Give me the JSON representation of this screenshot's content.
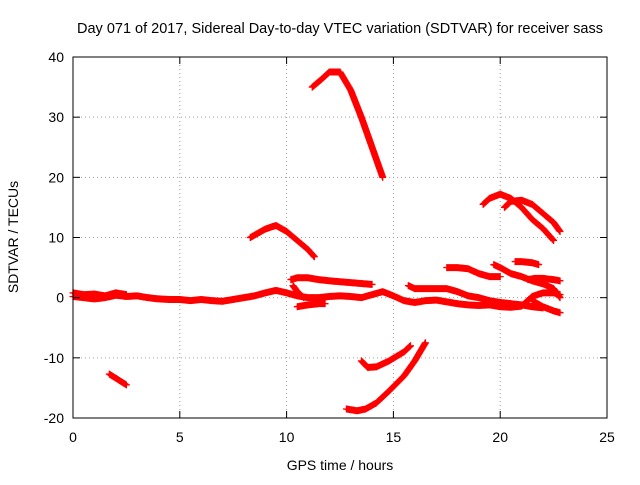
{
  "chart_data": {
    "type": "scatter",
    "title": "Day 071 of 2017, Sidereal Day-to-day VTEC variation (SDTVAR) for receiver sass",
    "xlabel": "GPS time / hours",
    "ylabel": "SDTVAR / TECUs",
    "xlim": [
      0,
      25
    ],
    "ylim": [
      -20,
      40
    ],
    "x_ticks": [
      0,
      5,
      10,
      15,
      20,
      25
    ],
    "y_ticks": [
      -20,
      -10,
      0,
      10,
      20,
      30,
      40
    ],
    "x_tick_labels": [
      "0",
      "5",
      "10",
      "15",
      "20",
      "25"
    ],
    "y_tick_labels": [
      "-20",
      "-10",
      "0",
      "10",
      "20",
      "30",
      "40"
    ],
    "grid": true,
    "marker": "plus",
    "color": "#ff0000",
    "series": [
      {
        "x": [
          0,
          0.5,
          1,
          1.5,
          2,
          2.5
        ],
        "y": [
          0.8,
          0.5,
          0.6,
          0.3,
          0.8,
          0.5
        ]
      },
      {
        "x": [
          0,
          0.5,
          1,
          1.5,
          2,
          2.5,
          3,
          3.5,
          4,
          4.5,
          5,
          5.5,
          6,
          6.5,
          7,
          7.5,
          8,
          8.5,
          9,
          9.5,
          10,
          10.5,
          11,
          11.5,
          12,
          12.5,
          13,
          13.5,
          14,
          14.5,
          15,
          15.5,
          16,
          16.5,
          17,
          17.5,
          18,
          18.5,
          19,
          19.5,
          20,
          20.5,
          21,
          21.5,
          22,
          22.5,
          22.8
        ],
        "y": [
          0.2,
          0,
          -0.2,
          0,
          0.4,
          0.2,
          0.3,
          0,
          -0.2,
          -0.3,
          -0.3,
          -0.5,
          -0.3,
          -0.5,
          -0.6,
          -0.3,
          0,
          0.3,
          0.8,
          1.2,
          0.8,
          0.3,
          0,
          0,
          0.2,
          0.3,
          0.2,
          0,
          0.5,
          1,
          0.3,
          -0.5,
          -0.8,
          -0.5,
          -0.4,
          -0.7,
          -1,
          -1.2,
          -1.3,
          -1.2,
          -1.5,
          -1.6,
          -1.4,
          0.2,
          0.8,
          0.8,
          0.5
        ]
      },
      {
        "x": [
          1.7,
          2.5
        ],
        "y": [
          -12.7,
          -14.5
        ]
      },
      {
        "x": [
          8.3,
          9,
          9.5,
          10,
          10.5,
          11,
          11.3
        ],
        "y": [
          10,
          11.4,
          12,
          11,
          9.5,
          8,
          6.8
        ]
      },
      {
        "x": [
          10.2,
          10.5,
          11,
          11.5,
          12,
          13,
          14
        ],
        "y": [
          3,
          3.3,
          3.3,
          3,
          2.8,
          2.5,
          2.2
        ]
      },
      {
        "x": [
          10.3,
          10.5,
          10.8
        ],
        "y": [
          2,
          1,
          0
        ]
      },
      {
        "x": [
          10.5,
          11,
          11.5,
          11.8
        ],
        "y": [
          -1.5,
          -1.2,
          -1,
          -1
        ]
      },
      {
        "x": [
          11.2,
          11.7,
          12,
          12.5,
          13,
          13.5,
          14,
          14.5
        ],
        "y": [
          35,
          36.5,
          37.5,
          37.5,
          34.5,
          30,
          25,
          20
        ]
      },
      {
        "x": [
          12.8,
          13.3,
          13.7,
          14.2,
          14.8,
          15.5,
          16,
          16.5
        ],
        "y": [
          -18.5,
          -18.8,
          -18.5,
          -17.5,
          -15.5,
          -13,
          -10.5,
          -7.5
        ]
      },
      {
        "x": [
          13.5,
          13.8,
          14.2,
          14.8,
          15.5,
          15.8
        ],
        "y": [
          -10.5,
          -11.6,
          -11.5,
          -10.5,
          -9,
          -8
        ]
      },
      {
        "x": [
          15.7,
          16,
          16.5,
          17,
          17.5,
          18,
          18.5,
          19,
          19.5,
          20,
          20.5,
          21,
          21.5,
          22
        ],
        "y": [
          2,
          1.5,
          1.5,
          1.5,
          1.5,
          1,
          0.3,
          0,
          -0.5,
          -0.8,
          -1,
          -1.2,
          -1.5,
          -1.7
        ]
      },
      {
        "x": [
          17.5,
          18,
          18.5,
          19,
          19.5,
          20
        ],
        "y": [
          5,
          5,
          4.8,
          4,
          3.5,
          3.5
        ]
      },
      {
        "x": [
          19.2,
          19.5,
          20,
          20.5,
          21,
          21.5,
          22,
          22.5
        ],
        "y": [
          15.5,
          16.5,
          17.2,
          16.5,
          15,
          13,
          11.5,
          9.5
        ]
      },
      {
        "x": [
          20.2,
          20.5,
          21,
          21.5,
          22,
          22.5,
          22.8
        ],
        "y": [
          15,
          16,
          16.2,
          15.5,
          14,
          12.5,
          11
        ]
      },
      {
        "x": [
          19.7,
          20,
          20.5,
          21,
          21.5,
          22,
          22.5,
          22.8
        ],
        "y": [
          5.5,
          5,
          4,
          3.5,
          2.8,
          2.3,
          1.5,
          0
        ]
      },
      {
        "x": [
          20.7,
          21,
          21.5,
          21.8
        ],
        "y": [
          6,
          6,
          5.8,
          5.5
        ]
      },
      {
        "x": [
          21.3,
          21.6,
          22,
          22.5,
          22.8
        ],
        "y": [
          3,
          3.2,
          3.2,
          3,
          2.8
        ]
      },
      {
        "x": [
          21.5,
          22,
          22.5,
          22.8
        ],
        "y": [
          -0.5,
          -1.5,
          -2.2,
          -2.5
        ]
      }
    ]
  }
}
